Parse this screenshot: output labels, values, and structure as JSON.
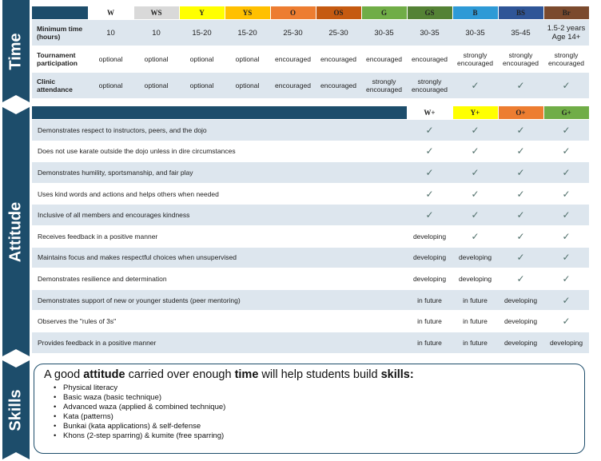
{
  "sections": {
    "time": "Time",
    "attitude": "Attitude",
    "skills": "Skills"
  },
  "time_table": {
    "belts": [
      {
        "code": "W",
        "color": "#ffffff"
      },
      {
        "code": "WS",
        "color": "#d9d9d9"
      },
      {
        "code": "Y",
        "color": "#ffff00"
      },
      {
        "code": "YS",
        "color": "#ffc000"
      },
      {
        "code": "O",
        "color": "#ed7d31"
      },
      {
        "code": "OS",
        "color": "#c55a11"
      },
      {
        "code": "G",
        "color": "#70ad47"
      },
      {
        "code": "GS",
        "color": "#548235"
      },
      {
        "code": "B",
        "color": "#2e9ad6"
      },
      {
        "code": "BS",
        "color": "#2f5597"
      },
      {
        "code": "Br",
        "color": "#7b4a2d"
      }
    ],
    "rows": [
      {
        "label": "Minimum time (hours)",
        "cells": [
          "10",
          "10",
          "15-20",
          "15-20",
          "25-30",
          "25-30",
          "30-35",
          "30-35",
          "30-35",
          "35-45",
          "1.5-2 years Age 14+"
        ]
      },
      {
        "label": "Tournament participation",
        "cells": [
          "optional",
          "optional",
          "optional",
          "optional",
          "encouraged",
          "encouraged",
          "encouraged",
          "encouraged",
          "strongly encouraged",
          "strongly encouraged",
          "strongly encouraged"
        ]
      },
      {
        "label": "Clinic attendance",
        "cells": [
          "optional",
          "optional",
          "optional",
          "optional",
          "encouraged",
          "encouraged",
          "strongly encouraged",
          "strongly encouraged",
          "✓",
          "✓",
          "✓"
        ]
      }
    ]
  },
  "attitude_table": {
    "levels": [
      {
        "code": "W+",
        "color": "#ffffff"
      },
      {
        "code": "Y+",
        "color": "#ffff00"
      },
      {
        "code": "O+",
        "color": "#ed7d31"
      },
      {
        "code": "G+",
        "color": "#70ad47"
      }
    ],
    "rows": [
      {
        "label": "Demonstrates respect to instructors, peers, and the dojo",
        "cells": [
          "✓",
          "✓",
          "✓",
          "✓"
        ]
      },
      {
        "label": "Does not use karate outside the dojo unless in dire circumstances",
        "cells": [
          "✓",
          "✓",
          "✓",
          "✓"
        ]
      },
      {
        "label": "Demonstrates humility, sportsmanship, and fair play",
        "cells": [
          "✓",
          "✓",
          "✓",
          "✓"
        ]
      },
      {
        "label": "Uses kind words and actions and helps others when needed",
        "cells": [
          "✓",
          "✓",
          "✓",
          "✓"
        ]
      },
      {
        "label": "Inclusive of all members and encourages kindness",
        "cells": [
          "✓",
          "✓",
          "✓",
          "✓"
        ]
      },
      {
        "label": "Receives feedback in a positive manner",
        "cells": [
          "developing",
          "✓",
          "✓",
          "✓"
        ]
      },
      {
        "label": "Maintains focus and makes respectful choices when unsupervised",
        "cells": [
          "developing",
          "developing",
          "✓",
          "✓"
        ]
      },
      {
        "label": "Demonstrates resilience and determination",
        "cells": [
          "developing",
          "developing",
          "✓",
          "✓"
        ]
      },
      {
        "label": "Demonstrates support of new or younger students (peer mentoring)",
        "cells": [
          "in future",
          "in future",
          "developing",
          "✓"
        ]
      },
      {
        "label": "Observes the \"rules of 3s\"",
        "cells": [
          "in future",
          "in future",
          "developing",
          "✓"
        ]
      },
      {
        "label": "Provides feedback in a positive manner",
        "cells": [
          "in future",
          "in future",
          "developing",
          "developing"
        ]
      }
    ]
  },
  "skills_box": {
    "heading_parts": [
      "A good ",
      "attitude",
      " carried over enough ",
      "time",
      " will help students build ",
      "skills:"
    ],
    "items": [
      "Physical literacy",
      "Basic waza (basic technique)",
      "Advanced waza (applied & combined technique)",
      "Kata (patterns)",
      "Bunkai (kata applications) & self-defense",
      "Khons (2-step sparring) & kumite (free sparring)"
    ]
  }
}
